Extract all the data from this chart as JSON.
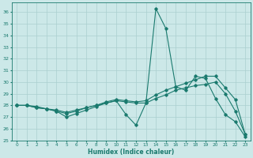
{
  "xlabel": "Humidex (Indice chaleur)",
  "bg_color": "#cce8e8",
  "grid_color": "#aacfcf",
  "line_color": "#1a7a6e",
  "xlim": [
    -0.5,
    23.5
  ],
  "ylim": [
    25,
    36.8
  ],
  "yticks": [
    25,
    26,
    27,
    28,
    29,
    30,
    31,
    32,
    33,
    34,
    35,
    36
  ],
  "xticks": [
    0,
    1,
    2,
    3,
    4,
    5,
    6,
    7,
    8,
    9,
    10,
    11,
    12,
    13,
    14,
    15,
    16,
    17,
    18,
    19,
    20,
    21,
    22,
    23
  ],
  "series": [
    [
      28.0,
      28.0,
      27.8,
      27.7,
      27.5,
      27.0,
      27.3,
      27.6,
      27.9,
      28.2,
      28.4,
      27.2,
      26.3,
      28.2,
      36.3,
      34.6,
      29.6,
      29.3,
      30.5,
      30.3,
      28.6,
      27.2,
      26.6,
      25.3
    ],
    [
      28.0,
      28.0,
      27.8,
      27.7,
      27.5,
      27.3,
      27.5,
      27.8,
      28.0,
      28.2,
      28.4,
      28.3,
      28.2,
      28.2,
      28.6,
      28.9,
      29.3,
      29.5,
      29.7,
      29.8,
      30.0,
      29.0,
      27.5,
      25.5
    ],
    [
      28.0,
      28.0,
      27.9,
      27.7,
      27.6,
      27.4,
      27.6,
      27.8,
      28.0,
      28.3,
      28.5,
      28.4,
      28.3,
      28.4,
      28.9,
      29.3,
      29.6,
      29.9,
      30.2,
      30.5,
      30.5,
      29.5,
      28.5,
      25.5
    ]
  ]
}
